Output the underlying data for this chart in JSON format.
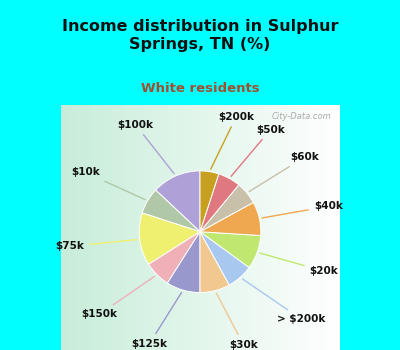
{
  "title": "Income distribution in Sulphur\nSprings, TN (%)",
  "subtitle": "White residents",
  "title_color": "#111111",
  "subtitle_color": "#a05030",
  "bg_cyan": "#00ffff",
  "labels_cw": [
    "$100k",
    "$10k",
    "$75k",
    "$150k",
    "$125k",
    "$30k",
    "> $200k",
    "$20k",
    "$40k",
    "$60k",
    "$50k",
    "$200k"
  ],
  "values_cw": [
    13,
    7,
    14,
    7,
    9,
    8,
    7,
    9,
    9,
    6,
    6,
    5
  ],
  "colors_cw": [
    "#b0a0d8",
    "#b0c8a8",
    "#f0f070",
    "#f0b0b8",
    "#9898cc",
    "#f0c890",
    "#a8c8f0",
    "#c0e870",
    "#f0a850",
    "#c8c0a8",
    "#e07880",
    "#c8a020"
  ],
  "startangle": 90,
  "title_fontsize": 11.5,
  "subtitle_fontsize": 9.5,
  "label_fontsize": 7.5
}
